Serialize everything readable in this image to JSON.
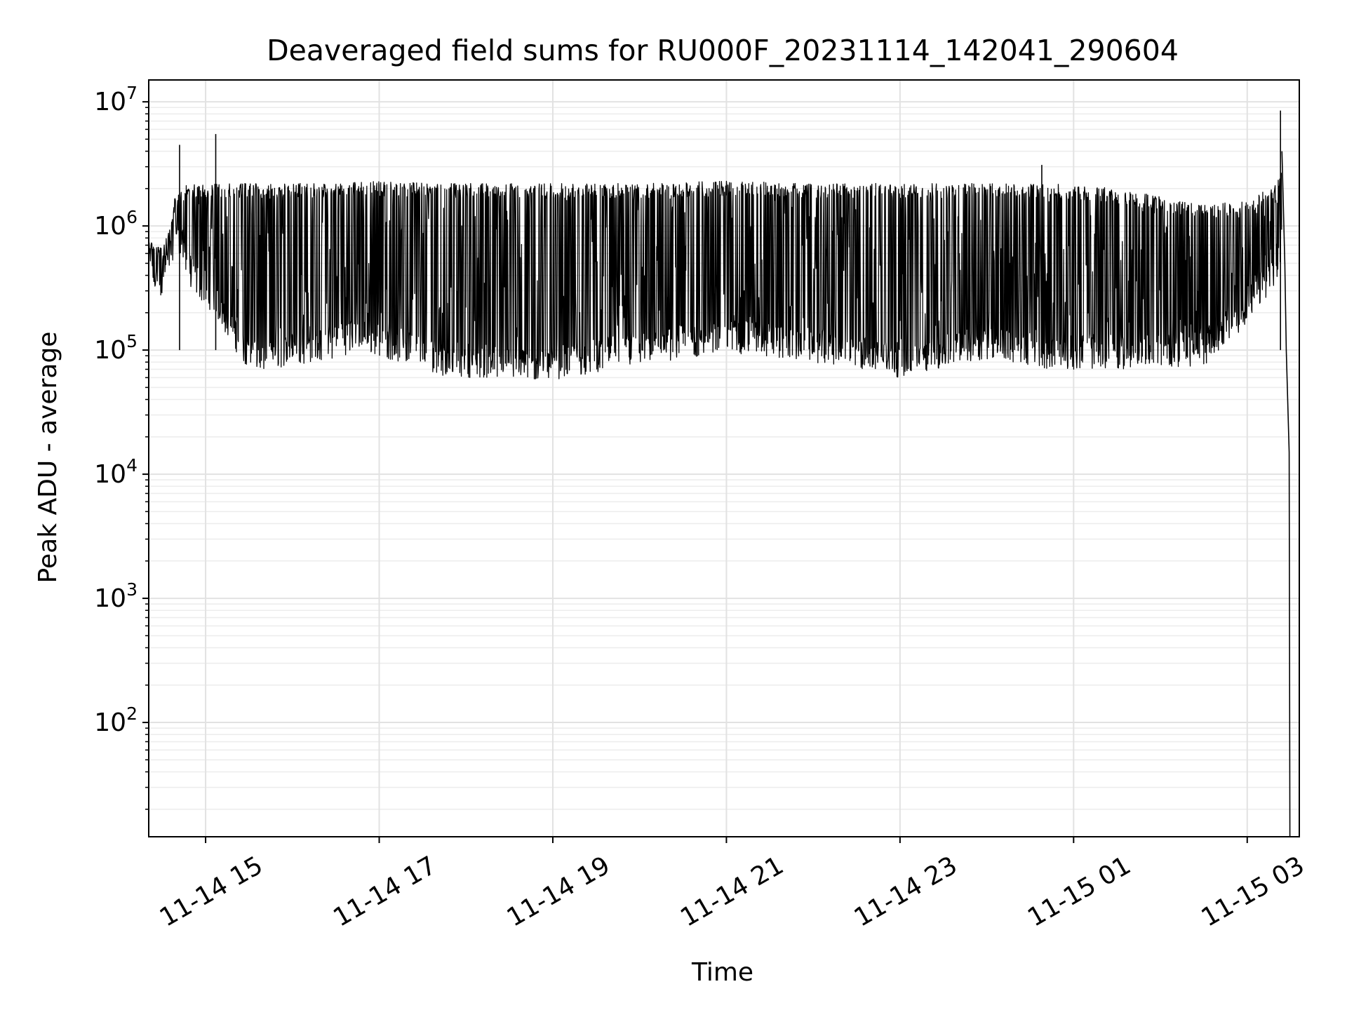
{
  "chart_data": {
    "type": "line",
    "title": "Deaveraged field sums for RU000F_20231114_142041_290604",
    "xlabel": "Time",
    "ylabel": "Peak ADU - average",
    "x_range": [
      "2023-11-14T14:20:41",
      "2023-11-15T03:36:00"
    ],
    "y_range": [
      12,
      15000000.0
    ],
    "y_scale": "log",
    "grid": {
      "major": true,
      "minor": true
    },
    "x_ticks": [
      {
        "label": "11-14 15",
        "t": "2023-11-14T15:00:00"
      },
      {
        "label": "11-14 17",
        "t": "2023-11-14T17:00:00"
      },
      {
        "label": "11-14 19",
        "t": "2023-11-14T19:00:00"
      },
      {
        "label": "11-14 21",
        "t": "2023-11-14T21:00:00"
      },
      {
        "label": "11-14 23",
        "t": "2023-11-14T23:00:00"
      },
      {
        "label": "11-15 01",
        "t": "2023-11-15T01:00:00"
      },
      {
        "label": "11-15 03",
        "t": "2023-11-15T03:00:00"
      }
    ],
    "y_ticks": [
      {
        "base": "10",
        "exp": "2",
        "value": 100
      },
      {
        "base": "10",
        "exp": "3",
        "value": 1000
      },
      {
        "base": "10",
        "exp": "4",
        "value": 10000
      },
      {
        "base": "10",
        "exp": "5",
        "value": 100000
      },
      {
        "base": "10",
        "exp": "6",
        "value": 1000000
      },
      {
        "base": "10",
        "exp": "7",
        "value": 10000000
      }
    ],
    "series": [
      {
        "color": "#000000",
        "envelope": [
          {
            "t": "2023-11-14T14:21:00",
            "low": 300000,
            "high": 800000
          },
          {
            "t": "2023-11-14T14:30:00",
            "low": 250000,
            "high": 650000
          },
          {
            "t": "2023-11-14T14:40:00",
            "low": 700000,
            "high": 2000000
          },
          {
            "t": "2023-11-14T14:50:00",
            "low": 300000,
            "high": 2200000
          },
          {
            "t": "2023-11-14T15:05:00",
            "low": 200000,
            "high": 2200000
          },
          {
            "t": "2023-11-14T15:30:00",
            "low": 65000,
            "high": 2200000
          },
          {
            "t": "2023-11-14T16:30:00",
            "low": 85000,
            "high": 2200000
          },
          {
            "t": "2023-11-14T16:45:00",
            "low": 100000,
            "high": 2300000
          },
          {
            "t": "2023-11-14T17:45:00",
            "low": 62000,
            "high": 2200000
          },
          {
            "t": "2023-11-14T18:50:00",
            "low": 55000,
            "high": 2200000
          },
          {
            "t": "2023-11-14T20:00:00",
            "low": 75000,
            "high": 2200000
          },
          {
            "t": "2023-11-14T21:00:00",
            "low": 95000,
            "high": 2300000
          },
          {
            "t": "2023-11-14T22:00:00",
            "low": 80000,
            "high": 2200000
          },
          {
            "t": "2023-11-14T23:00:00",
            "low": 60000,
            "high": 2200000
          },
          {
            "t": "2023-11-15T00:00:00",
            "low": 85000,
            "high": 2200000
          },
          {
            "t": "2023-11-15T00:45:00",
            "low": 70000,
            "high": 2200000
          },
          {
            "t": "2023-11-15T01:30:00",
            "low": 70000,
            "high": 2000000
          },
          {
            "t": "2023-11-15T02:30:00",
            "low": 75000,
            "high": 1500000
          },
          {
            "t": "2023-11-15T03:00:00",
            "low": 160000,
            "high": 1600000
          },
          {
            "t": "2023-11-15T03:20:00",
            "low": 350000,
            "high": 2200000
          },
          {
            "t": "2023-11-15T03:24:00",
            "low": 500000,
            "high": 3000000
          }
        ],
        "peaks": [
          {
            "t": "2023-11-14T14:42:00",
            "value": 4500000
          },
          {
            "t": "2023-11-14T15:07:00",
            "value": 5500000
          },
          {
            "t": "2023-11-15T00:38:00",
            "value": 3100000
          },
          {
            "t": "2023-11-15T03:23:00",
            "value": 8500000
          }
        ],
        "tail": [
          {
            "t": "2023-11-15T03:24:00",
            "value": 4000000
          },
          {
            "t": "2023-11-15T03:26:00",
            "value": 500000
          },
          {
            "t": "2023-11-15T03:27:00",
            "value": 100000
          },
          {
            "t": "2023-11-15T03:29:00",
            "value": 15000
          },
          {
            "t": "2023-11-15T03:29:30",
            "value": 12
          }
        ]
      }
    ]
  }
}
